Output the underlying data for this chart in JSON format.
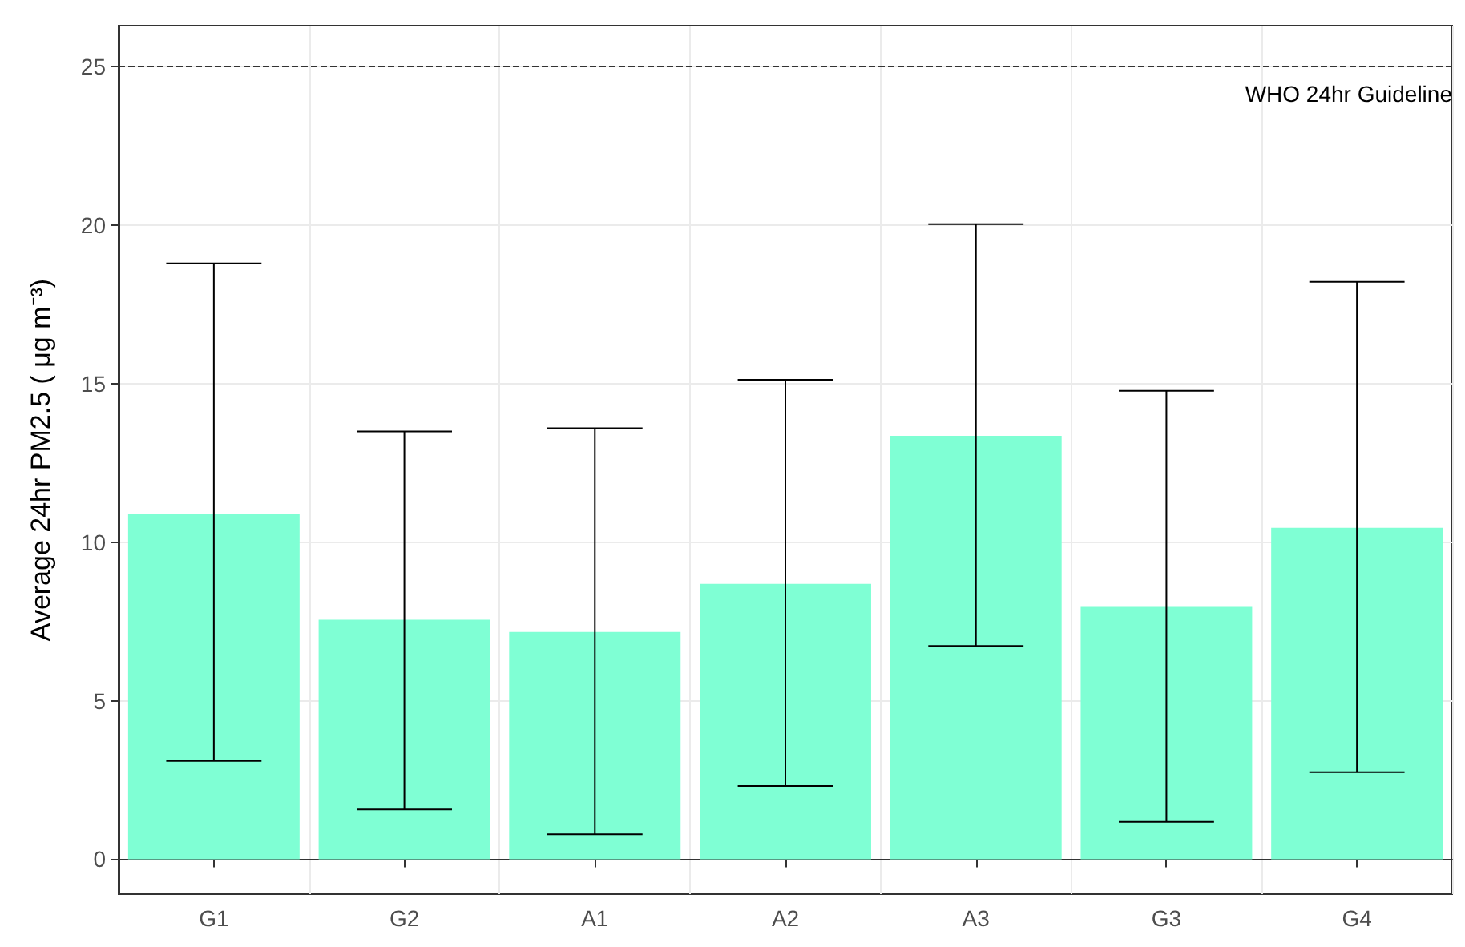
{
  "chart_data": {
    "type": "bar",
    "ylabel": "Average 24hr PM2.5 ( μg m⁻³)",
    "categories": [
      "G1",
      "G2",
      "A1",
      "A2",
      "A3",
      "G3",
      "G4"
    ],
    "values": [
      10.9,
      7.56,
      7.17,
      8.69,
      13.36,
      7.96,
      10.46
    ],
    "errors": [
      [
        3.1,
        18.8
      ],
      [
        1.57,
        13.5
      ],
      [
        0.79,
        13.6
      ],
      [
        2.31,
        15.13
      ],
      [
        6.73,
        20.04
      ],
      [
        1.18,
        14.78
      ],
      [
        2.75,
        18.22
      ]
    ],
    "color": "#7fffd4",
    "ylim": [
      -1.1,
      26.3
    ],
    "yticks": [
      0,
      5,
      10,
      15,
      20,
      25
    ],
    "grid": true,
    "ref_lines": [
      {
        "axis": "y",
        "value": 25,
        "label": "WHO 24hr Guideline",
        "line_style": "dashed",
        "color": "#333333"
      }
    ]
  }
}
